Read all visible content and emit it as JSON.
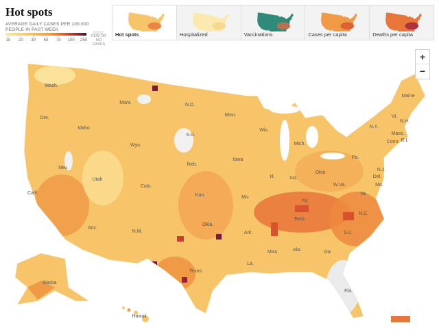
{
  "header": {
    "title": "Hot spots",
    "subtitle": "AVERAGE DAILY CASES PER 100,000 PEOPLE IN PAST WEEK"
  },
  "legend": {
    "ticks": [
      10,
      20,
      30,
      50,
      70,
      100,
      250
    ],
    "no_data_label": "FEW OR NO CASES"
  },
  "tabs": [
    {
      "label": "Hot spots",
      "selected": true
    },
    {
      "label": "Hospitalized",
      "selected": false
    },
    {
      "label": "Vaccinations",
      "selected": false
    },
    {
      "label": "Cases per capita",
      "selected": false
    },
    {
      "label": "Deaths per capita",
      "selected": false
    }
  ],
  "zoom": {
    "in": "+",
    "out": "−"
  },
  "states": [
    "Wash.",
    "Ore.",
    "Calif.",
    "Idaho",
    "Nev.",
    "Mont.",
    "Wyo.",
    "Utah",
    "Ariz.",
    "Colo.",
    "N.M.",
    "N.D.",
    "S.D.",
    "Neb.",
    "Kan.",
    "Okla.",
    "Texas",
    "Minn.",
    "Iowa",
    "Mo.",
    "Ark.",
    "La.",
    "Wis.",
    "Ill.",
    "Mich.",
    "Ind.",
    "Ohio",
    "Ky.",
    "Tenn.",
    "Miss.",
    "Ala.",
    "Ga.",
    "Fla.",
    "S.C.",
    "N.C.",
    "Va.",
    "W.Va.",
    "Pa.",
    "N.Y.",
    "Vt.",
    "N.H.",
    "Maine",
    "Mass.",
    "Conn.",
    "R.I.",
    "N.J.",
    "Del.",
    "Md.",
    "Alaska",
    "Hawaii"
  ]
}
